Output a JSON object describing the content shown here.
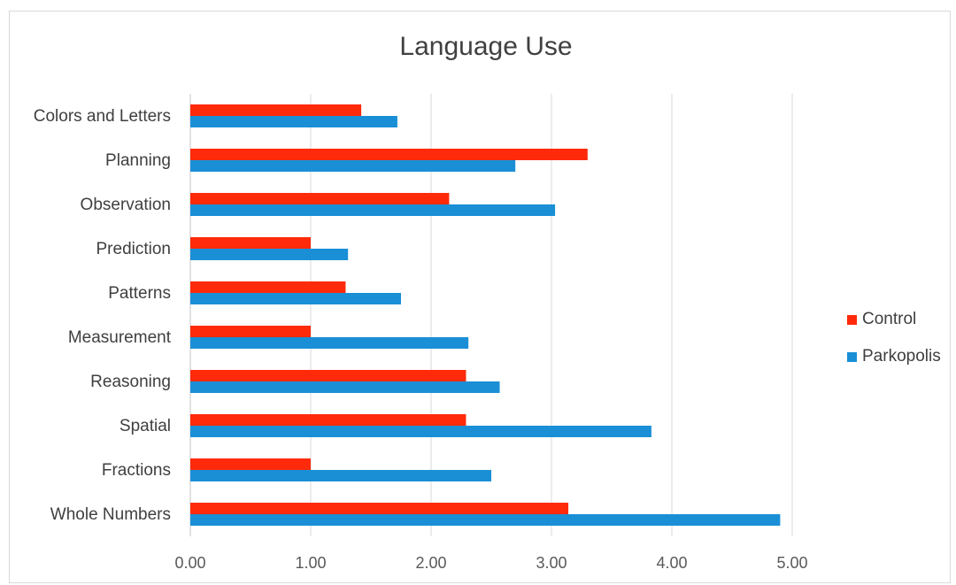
{
  "colors": {
    "control": "#ff2a0a",
    "parkopolis": "#1a8fd6",
    "gridline": "#d9d9d9",
    "axis_line": "#d9d9d9"
  },
  "chart_data": {
    "type": "bar",
    "orientation": "horizontal",
    "title": "Language Use",
    "xlabel": "",
    "ylabel": "",
    "xlim": [
      0,
      5
    ],
    "x_ticks": [
      "0.00",
      "1.00",
      "2.00",
      "3.00",
      "4.00",
      "5.00"
    ],
    "grid": "vertical",
    "legend_position": "right",
    "categories": [
      "Colors and Letters",
      "Planning",
      "Observation",
      "Prediction",
      "Patterns",
      "Measurement",
      "Reasoning",
      "Spatial",
      "Fractions",
      "Whole Numbers"
    ],
    "series": [
      {
        "name": "Control",
        "values": [
          1.42,
          3.3,
          2.15,
          1.0,
          1.29,
          1.0,
          2.29,
          2.29,
          1.0,
          3.14
        ]
      },
      {
        "name": "Parkopolis",
        "values": [
          1.72,
          2.7,
          3.03,
          1.31,
          1.75,
          2.31,
          2.57,
          3.83,
          2.5,
          4.9
        ]
      }
    ]
  }
}
